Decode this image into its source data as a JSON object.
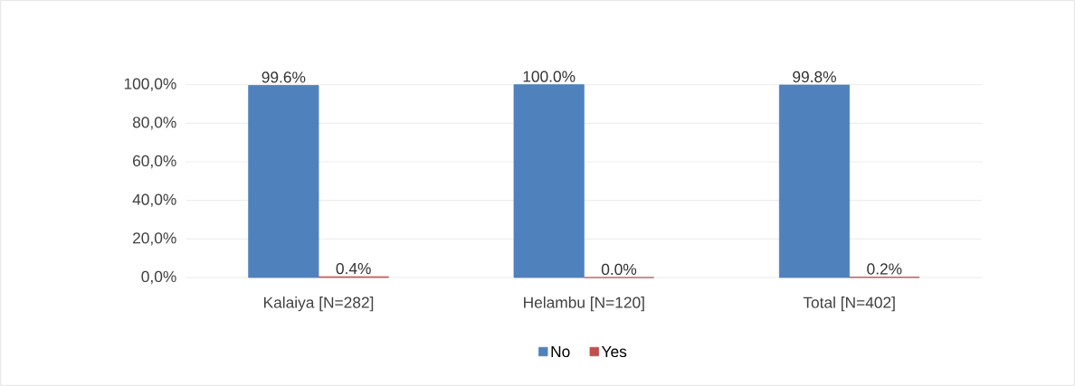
{
  "chart_data": {
    "type": "bar",
    "categories": [
      "Kalaiya [N=282]",
      "Helambu [N=120]",
      "Total [N=402]"
    ],
    "series": [
      {
        "name": "No",
        "color": "#4f81bd",
        "values": [
          99.6,
          100.0,
          99.8
        ],
        "value_labels": [
          "99.6%",
          "100.0%",
          "99.8%"
        ]
      },
      {
        "name": "Yes",
        "color": "#c0504d",
        "values": [
          0.4,
          0.0,
          0.2
        ],
        "value_labels": [
          "0.4%",
          "0.0%",
          "0.2%"
        ]
      }
    ],
    "ylim": [
      0,
      100
    ],
    "yticks": [
      {
        "value": 0,
        "label": "0,0%"
      },
      {
        "value": 20,
        "label": "20,0%"
      },
      {
        "value": 40,
        "label": "40,0%"
      },
      {
        "value": 60,
        "label": "60,0%"
      },
      {
        "value": 80,
        "label": "80,0%"
      },
      {
        "value": 100,
        "label": "100,0%"
      }
    ],
    "grid": "y",
    "legend": "bottom"
  }
}
